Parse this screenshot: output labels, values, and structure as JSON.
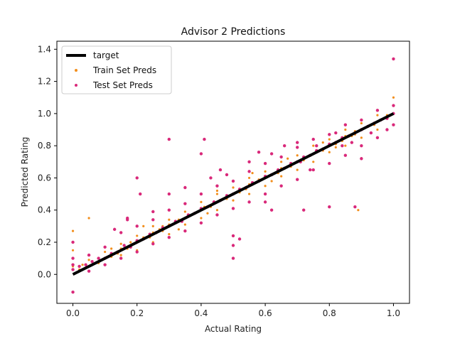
{
  "chart_data": {
    "type": "scatter",
    "title": "Advisor 2 Predictions",
    "xlabel": "Actual Rating",
    "ylabel": "Predicted Rating",
    "xlim": [
      -0.05,
      1.05
    ],
    "ylim": [
      -0.18,
      1.45
    ],
    "xticks": [
      0.0,
      0.2,
      0.4,
      0.6,
      0.8,
      1.0
    ],
    "xtick_labels": [
      "0.0",
      "0.2",
      "0.4",
      "0.6",
      "0.8",
      "1.0"
    ],
    "yticks": [
      0.0,
      0.2,
      0.4,
      0.6,
      0.8,
      1.0,
      1.2,
      1.4
    ],
    "ytick_labels": [
      "0.0",
      "0.2",
      "0.4",
      "0.6",
      "0.8",
      "1.0",
      "1.2",
      "1.4"
    ],
    "grid": false,
    "legend_position": "top-left",
    "series": [
      {
        "name": "target",
        "kind": "line",
        "color": "#000000",
        "x": [
          0.0,
          1.0
        ],
        "y": [
          0.0,
          1.0
        ]
      },
      {
        "name": "Train Set Preds",
        "kind": "scatter",
        "color": "#f28e1c",
        "x": [
          0.0,
          0.0,
          0.0,
          0.0,
          0.02,
          0.03,
          0.05,
          0.06,
          0.08,
          0.1,
          0.12,
          0.14,
          0.15,
          0.17,
          0.19,
          0.2,
          0.22,
          0.24,
          0.25,
          0.27,
          0.28,
          0.3,
          0.32,
          0.33,
          0.35,
          0.36,
          0.38,
          0.4,
          0.41,
          0.43,
          0.44,
          0.46,
          0.48,
          0.5,
          0.52,
          0.54,
          0.55,
          0.57,
          0.58,
          0.6,
          0.62,
          0.64,
          0.65,
          0.67,
          0.68,
          0.7,
          0.72,
          0.74,
          0.75,
          0.77,
          0.78,
          0.8,
          0.82,
          0.84,
          0.85,
          0.87,
          0.88,
          0.9,
          0.92,
          0.94,
          0.95,
          0.97,
          0.98,
          1.0,
          1.0,
          1.0,
          0.05,
          0.1,
          0.15,
          0.2,
          0.25,
          0.3,
          0.35,
          0.4,
          0.45,
          0.5,
          0.55,
          0.6,
          0.65,
          0.7,
          0.75,
          0.8,
          0.85,
          0.9,
          0.95,
          0.05,
          0.1,
          0.15,
          0.2,
          0.25,
          0.3,
          0.35,
          0.4,
          0.45,
          0.5,
          0.55,
          0.6,
          0.65,
          0.7,
          0.75,
          0.8,
          0.85,
          0.9,
          0.95,
          0.08,
          0.18,
          0.28,
          0.38,
          0.48,
          0.58,
          0.68,
          0.78,
          0.88,
          0.98,
          0.05,
          0.89,
          0.22,
          0.33,
          0.45,
          0.56,
          0.67,
          0.78,
          0.12,
          0.42,
          0.62,
          0.82
        ],
        "y": [
          0.27,
          0.2,
          0.15,
          0.05,
          0.03,
          0.06,
          0.05,
          0.08,
          0.07,
          0.1,
          0.11,
          0.13,
          0.16,
          0.16,
          0.19,
          0.2,
          0.23,
          0.23,
          0.26,
          0.28,
          0.27,
          0.31,
          0.32,
          0.34,
          0.35,
          0.37,
          0.38,
          0.4,
          0.42,
          0.42,
          0.45,
          0.46,
          0.48,
          0.5,
          0.51,
          0.53,
          0.56,
          0.57,
          0.59,
          0.6,
          0.62,
          0.63,
          0.66,
          0.67,
          0.69,
          0.7,
          0.71,
          0.74,
          0.75,
          0.77,
          0.78,
          0.8,
          0.81,
          0.83,
          0.86,
          0.86,
          0.89,
          0.9,
          0.92,
          0.93,
          0.95,
          0.97,
          0.99,
          1.0,
          1.05,
          1.1,
          0.02,
          0.06,
          0.12,
          0.15,
          0.2,
          0.25,
          0.31,
          0.35,
          0.4,
          0.46,
          0.5,
          0.55,
          0.61,
          0.65,
          0.7,
          0.76,
          0.8,
          0.85,
          0.9,
          0.09,
          0.14,
          0.19,
          0.24,
          0.3,
          0.34,
          0.39,
          0.45,
          0.5,
          0.54,
          0.6,
          0.64,
          0.7,
          0.74,
          0.8,
          0.84,
          0.9,
          0.94,
          0.99,
          0.1,
          0.2,
          0.3,
          0.38,
          0.47,
          0.58,
          0.67,
          0.77,
          0.87,
          0.97,
          0.35,
          0.4,
          0.3,
          0.28,
          0.52,
          0.63,
          0.72,
          0.82,
          0.16,
          0.38,
          0.58,
          0.79
        ]
      },
      {
        "name": "Test Set Preds",
        "kind": "scatter",
        "color": "#d9297a",
        "x": [
          0.0,
          0.0,
          0.0,
          0.02,
          0.04,
          0.06,
          0.08,
          0.1,
          0.12,
          0.14,
          0.16,
          0.18,
          0.2,
          0.22,
          0.24,
          0.26,
          0.28,
          0.3,
          0.32,
          0.34,
          0.36,
          0.38,
          0.4,
          0.42,
          0.44,
          0.46,
          0.48,
          0.5,
          0.52,
          0.54,
          0.56,
          0.58,
          0.6,
          0.62,
          0.64,
          0.66,
          0.68,
          0.7,
          0.72,
          0.74,
          0.76,
          0.78,
          0.8,
          0.82,
          0.84,
          0.86,
          0.88,
          0.9,
          0.92,
          0.94,
          0.96,
          0.98,
          1.0,
          1.0,
          1.0,
          0.0,
          0.05,
          0.1,
          0.15,
          0.2,
          0.25,
          0.3,
          0.35,
          0.4,
          0.45,
          0.5,
          0.55,
          0.6,
          0.65,
          0.7,
          0.75,
          0.8,
          0.85,
          0.9,
          0.95,
          0.05,
          0.1,
          0.15,
          0.2,
          0.25,
          0.3,
          0.35,
          0.4,
          0.45,
          0.5,
          0.55,
          0.6,
          0.65,
          0.7,
          0.75,
          0.8,
          0.85,
          0.9,
          0.95,
          0.2,
          0.21,
          0.3,
          0.41,
          0.44,
          0.5,
          0.52,
          0.56,
          0.6,
          0.62,
          0.71,
          0.74,
          0.8,
          0.84,
          0.5,
          0.5,
          0.0,
          0.17,
          0.17,
          0.13,
          0.3,
          0.25,
          0.35,
          0.43,
          0.46,
          0.55,
          0.58,
          0.62,
          0.66,
          0.7,
          0.76,
          0.82,
          0.87,
          0.93,
          0.98,
          1.0,
          0.4,
          0.9,
          0.72,
          0.88,
          0.48
        ],
        "y": [
          -0.11,
          0.03,
          0.06,
          0.05,
          0.06,
          0.08,
          0.1,
          0.1,
          0.13,
          0.14,
          0.18,
          0.17,
          0.21,
          0.22,
          0.25,
          0.26,
          0.29,
          0.3,
          0.33,
          0.33,
          0.37,
          0.38,
          0.41,
          0.42,
          0.45,
          0.46,
          0.49,
          0.5,
          0.53,
          0.54,
          0.57,
          0.58,
          0.61,
          0.62,
          0.65,
          0.66,
          0.69,
          0.7,
          0.73,
          0.74,
          0.77,
          0.78,
          0.81,
          0.82,
          0.85,
          0.86,
          0.88,
          0.9,
          0.92,
          0.94,
          0.96,
          0.97,
          1.0,
          1.05,
          1.34,
          0.1,
          0.12,
          0.17,
          0.1,
          0.14,
          0.19,
          0.23,
          0.27,
          0.32,
          0.37,
          0.41,
          0.45,
          0.5,
          0.55,
          0.59,
          0.65,
          0.69,
          0.74,
          0.8,
          0.85,
          0.02,
          0.06,
          0.26,
          0.3,
          0.34,
          0.4,
          0.44,
          0.5,
          0.55,
          0.58,
          0.64,
          0.69,
          0.73,
          0.79,
          0.84,
          0.87,
          0.93,
          0.96,
          1.02,
          0.6,
          0.5,
          0.84,
          0.84,
          0.45,
          0.1,
          0.22,
          0.57,
          0.45,
          0.4,
          0.7,
          0.65,
          0.42,
          0.8,
          0.18,
          0.24,
          0.2,
          0.34,
          0.35,
          0.28,
          0.5,
          0.39,
          0.54,
          0.6,
          0.65,
          0.7,
          0.76,
          0.75,
          0.8,
          0.82,
          0.8,
          0.88,
          0.82,
          0.88,
          0.9,
          0.93,
          0.75,
          0.72,
          0.4,
          0.42,
          0.62
        ]
      }
    ]
  }
}
